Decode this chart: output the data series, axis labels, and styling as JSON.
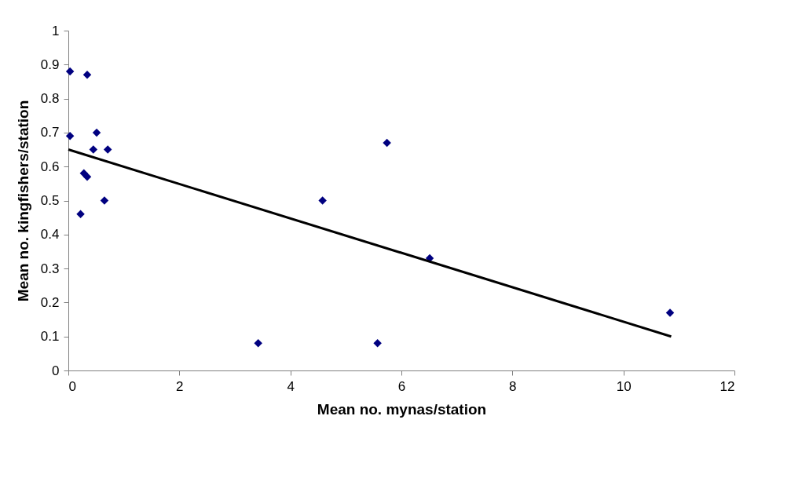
{
  "chart_data": {
    "type": "scatter",
    "xlabel": "Mean no. mynas/station",
    "ylabel": "Mean no. kingfishers/station",
    "xlim": [
      0,
      12
    ],
    "xticks": [
      0,
      2,
      4,
      6,
      8,
      10,
      12
    ],
    "ylim": [
      0,
      1
    ],
    "yticks": [
      0,
      0.1,
      0.2,
      0.3,
      0.4,
      0.5,
      0.6,
      0.7,
      0.8,
      0.9,
      1
    ],
    "grid": false,
    "series": [
      {
        "marker": "diamond",
        "color": "#000080",
        "x": [
          0.03,
          0.34,
          0.03,
          0.51,
          0.45,
          0.71,
          0.28,
          0.34,
          0.65,
          0.22,
          3.42,
          4.58,
          5.57,
          5.74,
          6.51,
          10.84
        ],
        "values": [
          0.88,
          0.87,
          0.69,
          0.7,
          0.65,
          0.65,
          0.58,
          0.57,
          0.5,
          0.46,
          0.08,
          0.5,
          0.08,
          0.67,
          0.33,
          0.17
        ]
      },
      {
        "type": "line",
        "line_style": "solid",
        "color": "#000000",
        "x": [
          0,
          10.86
        ],
        "values": [
          0.65,
          0.1
        ]
      }
    ]
  }
}
